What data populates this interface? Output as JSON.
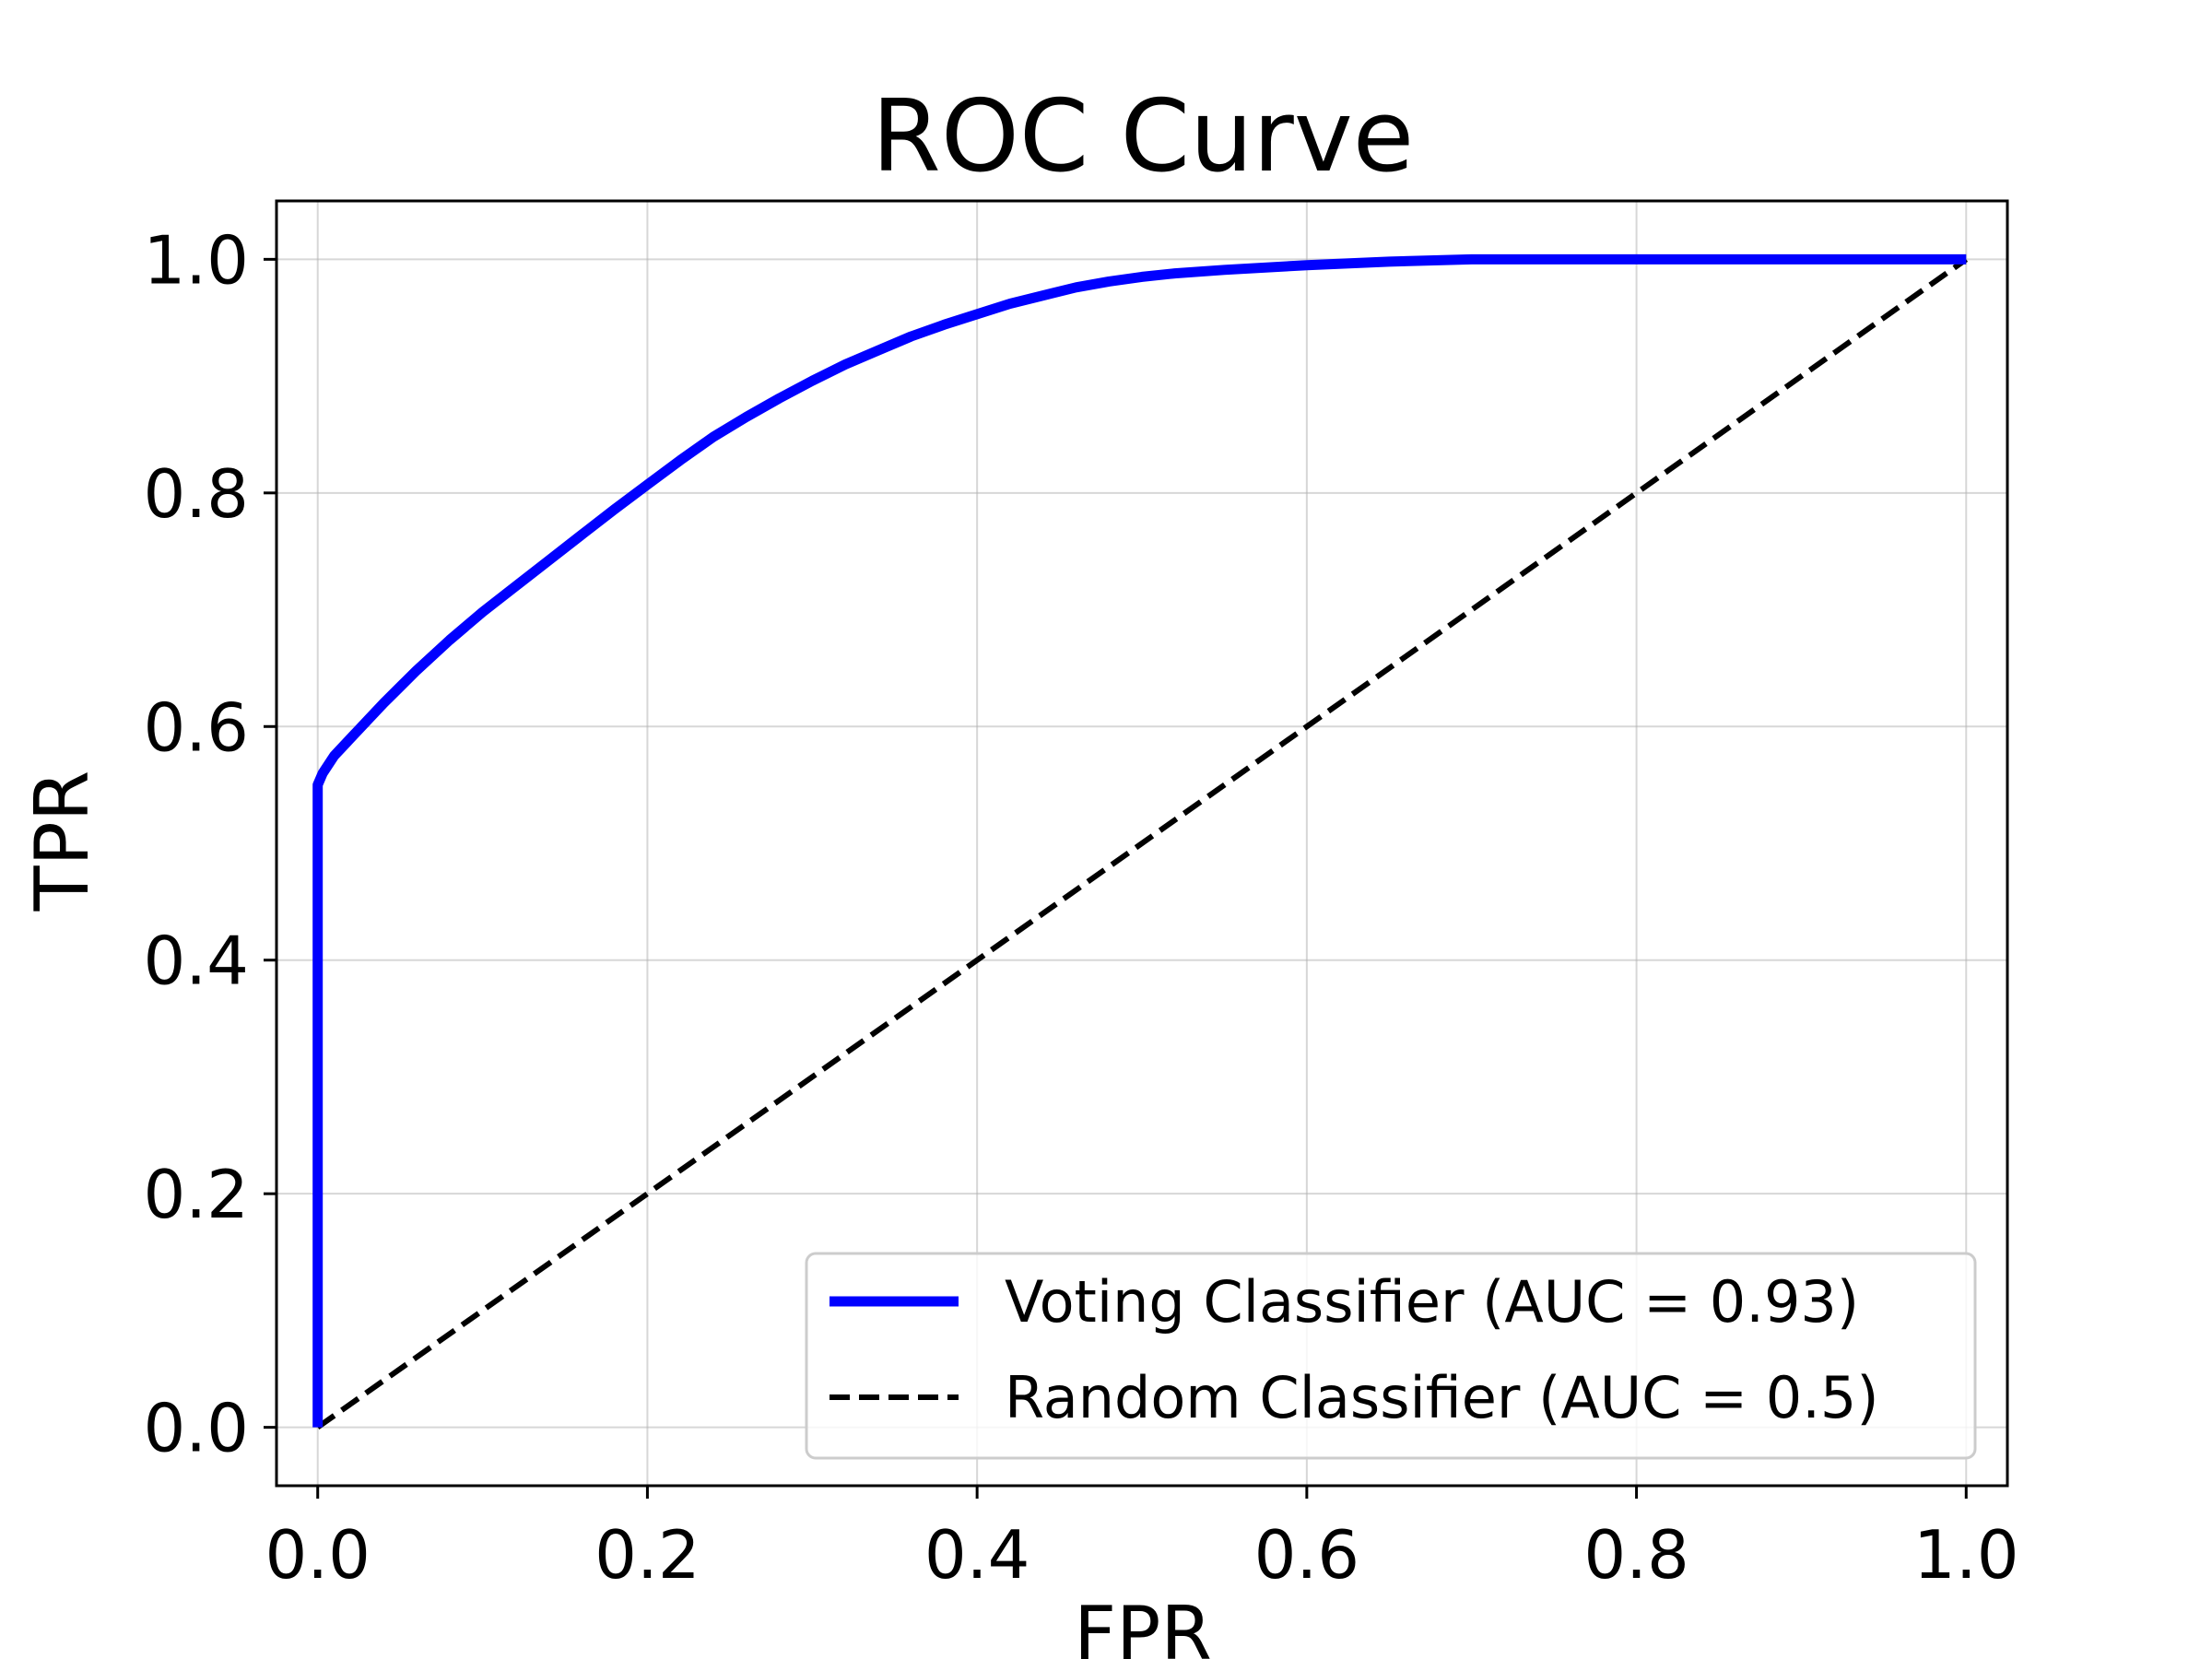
{
  "chart_data": {
    "type": "line",
    "title": "ROC Curve",
    "xlabel": "FPR",
    "ylabel": "TPR",
    "xlim": [
      -0.025,
      1.025
    ],
    "ylim": [
      -0.05,
      1.05
    ],
    "x_ticks": [
      "0.0",
      "0.2",
      "0.4",
      "0.6",
      "0.8",
      "1.0"
    ],
    "y_ticks": [
      "0.0",
      "0.2",
      "0.4",
      "0.6",
      "0.8",
      "1.0"
    ],
    "grid": true,
    "legend_position": "lower-right",
    "series": [
      {
        "name": "Voting Classifier (AUC = 0.93)",
        "color": "#0000ff",
        "style": "solid",
        "points": [
          [
            0.0,
            0.0
          ],
          [
            0.0,
            0.55
          ],
          [
            0.003,
            0.56
          ],
          [
            0.01,
            0.575
          ],
          [
            0.02,
            0.59
          ],
          [
            0.03,
            0.605
          ],
          [
            0.04,
            0.62
          ],
          [
            0.05,
            0.634
          ],
          [
            0.06,
            0.648
          ],
          [
            0.08,
            0.674
          ],
          [
            0.1,
            0.698
          ],
          [
            0.12,
            0.72
          ],
          [
            0.14,
            0.742
          ],
          [
            0.16,
            0.764
          ],
          [
            0.18,
            0.786
          ],
          [
            0.2,
            0.807
          ],
          [
            0.22,
            0.828
          ],
          [
            0.24,
            0.848
          ],
          [
            0.26,
            0.865
          ],
          [
            0.28,
            0.881
          ],
          [
            0.3,
            0.896
          ],
          [
            0.32,
            0.91
          ],
          [
            0.34,
            0.922
          ],
          [
            0.36,
            0.934
          ],
          [
            0.38,
            0.944
          ],
          [
            0.4,
            0.953
          ],
          [
            0.42,
            0.962
          ],
          [
            0.44,
            0.969
          ],
          [
            0.46,
            0.976
          ],
          [
            0.48,
            0.981
          ],
          [
            0.5,
            0.985
          ],
          [
            0.52,
            0.988
          ],
          [
            0.55,
            0.991
          ],
          [
            0.6,
            0.995
          ],
          [
            0.65,
            0.998
          ],
          [
            0.7,
            1.0
          ],
          [
            0.8,
            1.0
          ],
          [
            0.9,
            1.0
          ],
          [
            1.0,
            1.0
          ]
        ]
      },
      {
        "name": "Random Classifier (AUC = 0.5)",
        "color": "#000000",
        "style": "dashed",
        "points": [
          [
            0.0,
            0.0
          ],
          [
            1.0,
            1.0
          ]
        ]
      }
    ]
  }
}
